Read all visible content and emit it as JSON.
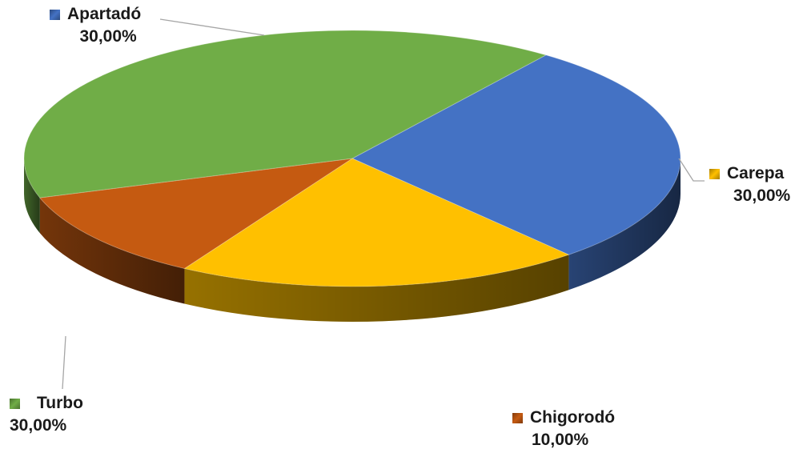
{
  "chart_data": {
    "type": "pie",
    "style": "3d",
    "legend": "none",
    "slices": [
      {
        "label": "Apartadó",
        "value": 30.0,
        "value_label": "30,00%",
        "color": "#4472C4"
      },
      {
        "label": "Carepa",
        "value": 30.0,
        "value_label": "30,00%",
        "color": "#FFC000"
      },
      {
        "label": "Chigorodó",
        "value": 10.0,
        "value_label": "10,00%",
        "color": "#C55A11"
      },
      {
        "label": "Turbo",
        "value": 30.0,
        "value_label": "30,00%",
        "color": "#70AD47"
      }
    ]
  }
}
